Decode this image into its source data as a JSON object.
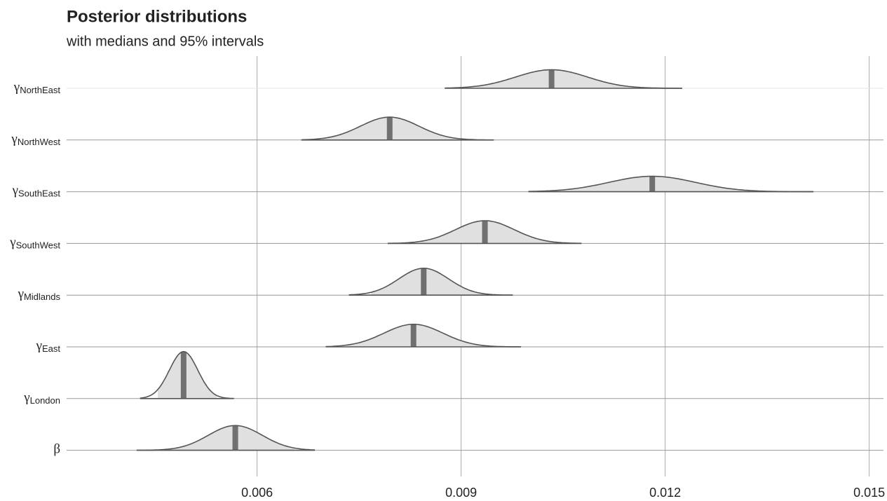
{
  "chart_data": {
    "type": "ridgeline",
    "title": "Posterior distributions",
    "subtitle": "with medians and 95% intervals",
    "categories": [
      {
        "symbol": "γ",
        "subscript": "NorthEast"
      },
      {
        "symbol": "γ",
        "subscript": "NorthWest"
      },
      {
        "symbol": "γ",
        "subscript": "SouthEast"
      },
      {
        "symbol": "γ",
        "subscript": "SouthWest"
      },
      {
        "symbol": "γ",
        "subscript": "Midlands"
      },
      {
        "symbol": "γ",
        "subscript": "East"
      },
      {
        "symbol": "γ",
        "subscript": "London"
      },
      {
        "symbol": "β"
      }
    ],
    "medians": [
      0.01033,
      0.00795,
      0.01181,
      0.00935,
      0.00845,
      0.0083,
      0.00492,
      0.00568
    ],
    "intervals_95": [
      [
        0.00907,
        0.01171
      ],
      [
        0.00696,
        0.00897
      ],
      [
        0.01031,
        0.01347
      ],
      [
        0.0084,
        0.01043
      ],
      [
        0.00768,
        0.00943
      ],
      [
        0.00732,
        0.00943
      ],
      [
        0.00454,
        0.00541
      ],
      [
        0.00464,
        0.00655
      ]
    ],
    "outer_ranges": [
      [
        0.00876,
        0.01225
      ],
      [
        0.00665,
        0.00948
      ],
      [
        0.00999,
        0.01418
      ],
      [
        0.00792,
        0.01077
      ],
      [
        0.00735,
        0.00976
      ],
      [
        0.00701,
        0.00988
      ],
      [
        0.00428,
        0.00566
      ],
      [
        0.00423,
        0.00685
      ]
    ],
    "fill_color": "#e0e0e0",
    "line_color": "#555555",
    "median_color": "#707070",
    "xlim": [
      0.0032,
      0.01521
    ],
    "xticks": [
      0.006,
      0.009,
      0.012,
      0.015
    ],
    "grid": true
  }
}
